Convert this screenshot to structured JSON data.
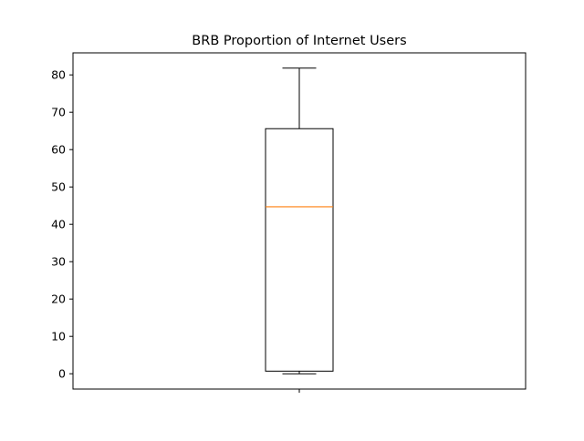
{
  "chart_data": {
    "type": "box",
    "title": "BRB Proportion of Internet Users",
    "xlabel": "",
    "ylabel": "",
    "categories": [
      ""
    ],
    "boxes": [
      {
        "whisker_low": 0.0,
        "q1": 0.7,
        "median": 44.7,
        "q3": 65.6,
        "whisker_high": 81.8
      }
    ],
    "ylim": [
      -4.1,
      85.9
    ],
    "yticks": [
      0,
      10,
      20,
      30,
      40,
      50,
      60,
      70,
      80
    ],
    "grid": false,
    "legend": "none",
    "colors": {
      "box": "#000000",
      "median": "#ff7f0e",
      "axes": "#000000"
    }
  }
}
